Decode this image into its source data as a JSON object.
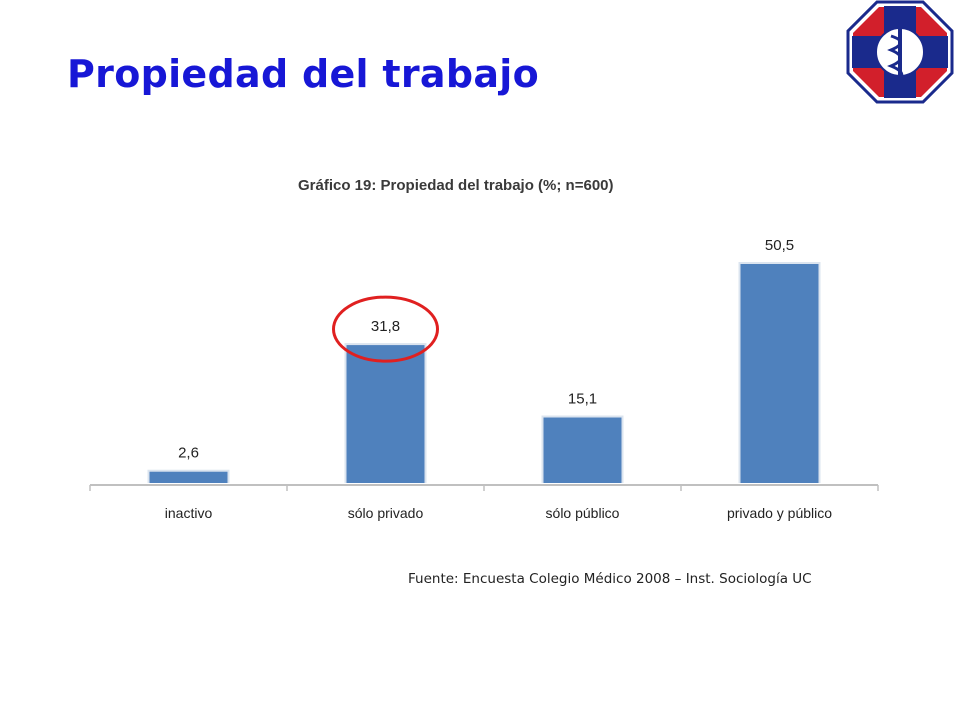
{
  "slide": {
    "title": "Propiedad del trabajo",
    "source": "Fuente: Encuesta Colegio Médico 2008 – Inst. Sociología UC"
  },
  "logo": {
    "icon": "colegio-medico-logo-icon"
  },
  "chart_data": {
    "type": "bar",
    "title": "Gráfico 19: Propiedad del trabajo (%; n=600)",
    "categories": [
      "inactivo",
      "sólo privado",
      "sólo público",
      "privado  y público"
    ],
    "values": [
      2.6,
      31.8,
      15.1,
      50.5
    ],
    "value_labels": [
      "2,6",
      "31,8",
      "15,1",
      "50,5"
    ],
    "ylim": [
      0,
      50.5
    ],
    "grid": false,
    "legend": "none",
    "bar_color": "#4f81bd",
    "highlight": {
      "category": "sólo privado",
      "shape": "circle",
      "color": "#e02020"
    }
  }
}
